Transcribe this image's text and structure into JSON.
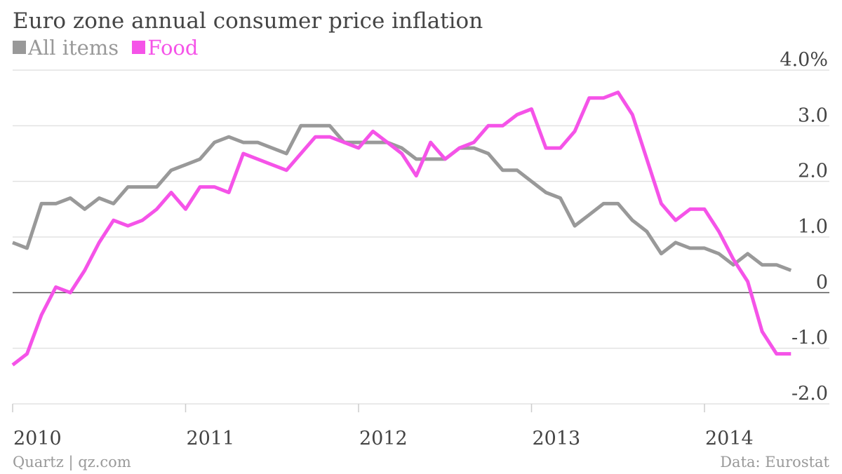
{
  "chart_data": {
    "type": "line",
    "title": "Euro zone annual consumer price inflation",
    "xlabel": "",
    "ylabel": "",
    "ylim": [
      -2.0,
      4.0
    ],
    "y_ticks": [
      {
        "value": 4.0,
        "label": "4.0%"
      },
      {
        "value": 3.0,
        "label": "3.0"
      },
      {
        "value": 2.0,
        "label": "2.0"
      },
      {
        "value": 1.0,
        "label": "1.0"
      },
      {
        "value": 0,
        "label": "0"
      },
      {
        "value": -1.0,
        "label": "-1.0"
      },
      {
        "value": -2.0,
        "label": "-2.0"
      }
    ],
    "x_ticks": [
      {
        "value": 2010,
        "label": "2010"
      },
      {
        "value": 2011,
        "label": "2011"
      },
      {
        "value": 2012,
        "label": "2012"
      },
      {
        "value": 2013,
        "label": "2013"
      },
      {
        "value": 2014,
        "label": "2014"
      }
    ],
    "xlim": [
      2010,
      2014.6
    ],
    "x_start": "2010-01",
    "x_step": "month",
    "grid": true,
    "legend_position": "top-left",
    "series": [
      {
        "name": "All items",
        "color": "#999999",
        "values": [
          0.9,
          0.8,
          1.6,
          1.6,
          1.7,
          1.5,
          1.7,
          1.6,
          1.9,
          1.9,
          1.9,
          2.2,
          2.3,
          2.4,
          2.7,
          2.8,
          2.7,
          2.7,
          2.6,
          2.5,
          3.0,
          3.0,
          3.0,
          2.7,
          2.7,
          2.7,
          2.7,
          2.6,
          2.4,
          2.4,
          2.4,
          2.6,
          2.6,
          2.5,
          2.2,
          2.2,
          2.0,
          1.8,
          1.7,
          1.2,
          1.4,
          1.6,
          1.6,
          1.3,
          1.1,
          0.7,
          0.9,
          0.8,
          0.8,
          0.7,
          0.5,
          0.7,
          0.5,
          0.5,
          0.4
        ]
      },
      {
        "name": "Food",
        "color": "#f553e8",
        "values": [
          -1.3,
          -1.1,
          -0.4,
          0.1,
          0.0,
          0.4,
          0.9,
          1.3,
          1.2,
          1.3,
          1.5,
          1.8,
          1.5,
          1.9,
          1.9,
          1.8,
          2.5,
          2.4,
          2.3,
          2.2,
          2.5,
          2.8,
          2.8,
          2.7,
          2.6,
          2.9,
          2.7,
          2.5,
          2.1,
          2.7,
          2.4,
          2.6,
          2.7,
          3.0,
          3.0,
          3.2,
          3.3,
          2.6,
          2.6,
          2.9,
          3.5,
          3.5,
          3.6,
          3.2,
          2.4,
          1.6,
          1.3,
          1.5,
          1.5,
          1.1,
          0.6,
          0.2,
          -0.7,
          -1.1,
          -1.1
        ]
      }
    ]
  },
  "footer": {
    "source_left": "Quartz | qz.com",
    "source_right": "Data: Eurostat"
  }
}
